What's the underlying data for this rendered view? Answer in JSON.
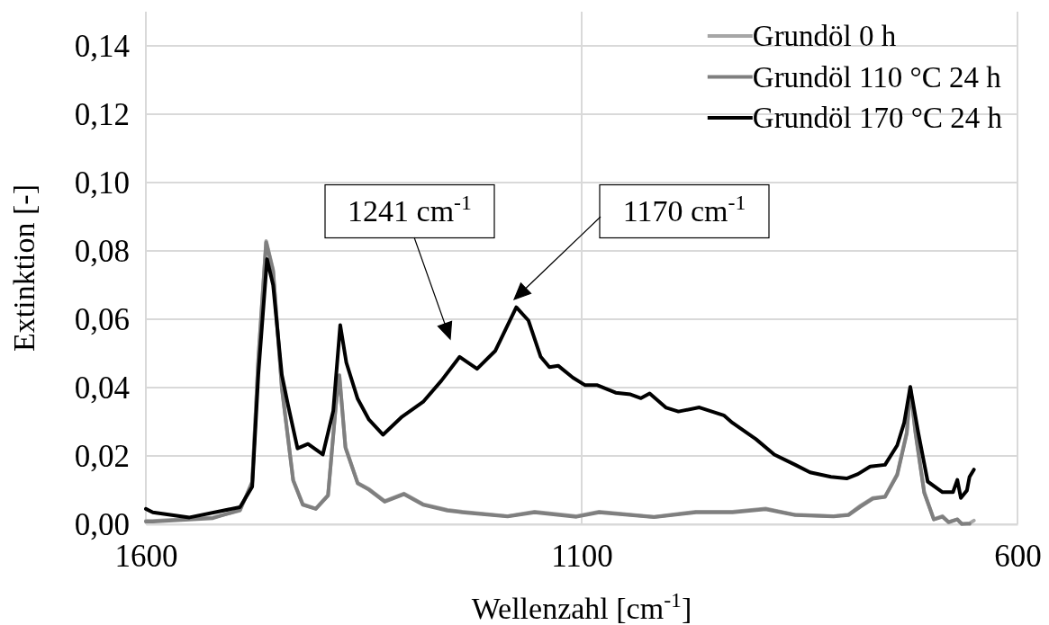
{
  "chart_data": {
    "type": "line",
    "xlabel": "Wellenzahl [cm$^{-1}$]",
    "ylabel": "Extinktion [-]",
    "xlim": [
      1600,
      600
    ],
    "xticks": [
      1600,
      1100,
      600
    ],
    "ylim": [
      0,
      0.15
    ],
    "yticks": [
      {
        "value": 0,
        "label": "0,00"
      },
      {
        "value": 0.02,
        "label": "0,02"
      },
      {
        "value": 0.04,
        "label": "0,04"
      },
      {
        "value": 0.06,
        "label": "0,06"
      },
      {
        "value": 0.08,
        "label": "0,08"
      },
      {
        "value": 0.1,
        "label": "0,10"
      },
      {
        "value": 0.12,
        "label": "0,12"
      },
      {
        "value": 0.14,
        "label": "0,14"
      }
    ],
    "grid": true,
    "legend": "top right",
    "line_style": "solid",
    "marker": "none",
    "annotations": [
      "1241 cm$^{-1}$",
      "1170 cm$^{-1}$"
    ],
    "series": [
      {
        "name": "Grundöl 0 h",
        "color": "#a6a6a6",
        "x": [
          1600,
          1592,
          1523,
          1492,
          1478,
          1471,
          1462,
          1454,
          1444,
          1431,
          1420,
          1405,
          1391,
          1382,
          1378,
          1371,
          1357,
          1344,
          1326,
          1304,
          1282,
          1254,
          1237,
          1185,
          1154,
          1106,
          1080,
          1017,
          969,
          927,
          889,
          855,
          811,
          794,
          780,
          766,
          752,
          738,
          727,
          723,
          717,
          707,
          696,
          686,
          679,
          669,
          664,
          655,
          650
        ],
        "values": [
          0.001,
          0.001,
          0.002,
          0.004,
          0.0125,
          0.0484,
          0.0829,
          0.0745,
          0.0402,
          0.013,
          0.0059,
          0.0046,
          0.0086,
          0.035,
          0.0437,
          0.0226,
          0.0121,
          0.0103,
          0.0068,
          0.009,
          0.0059,
          0.0042,
          0.0037,
          0.0024,
          0.0037,
          0.0024,
          0.0037,
          0.0022,
          0.0037,
          0.0037,
          0.0046,
          0.0028,
          0.0024,
          0.0028,
          0.0055,
          0.0077,
          0.0081,
          0.0147,
          0.027,
          0.0402,
          0.027,
          0.0094,
          0.0015,
          0.0024,
          0.0007,
          0.0015,
          0,
          0.0003,
          0.0011
        ]
      },
      {
        "name": "Grundöl 110 °C 24 h",
        "color": "#7f7f7f",
        "x": [
          1600,
          1592,
          1523,
          1492,
          1478,
          1471,
          1462,
          1454,
          1444,
          1431,
          1420,
          1405,
          1391,
          1382,
          1378,
          1371,
          1357,
          1344,
          1326,
          1304,
          1282,
          1254,
          1237,
          1185,
          1154,
          1106,
          1080,
          1017,
          969,
          927,
          889,
          855,
          811,
          794,
          780,
          766,
          752,
          738,
          727,
          723,
          717,
          707,
          696,
          686,
          679,
          669,
          664,
          655
        ],
        "values": [
          0.0008,
          0.0008,
          0.0018,
          0.0042,
          0.0122,
          0.048,
          0.0825,
          0.074,
          0.0398,
          0.0128,
          0.0057,
          0.0045,
          0.0084,
          0.0348,
          0.0435,
          0.0224,
          0.012,
          0.0101,
          0.0066,
          0.0088,
          0.0057,
          0.004,
          0.0035,
          0.0023,
          0.0035,
          0.0022,
          0.0035,
          0.0021,
          0.0035,
          0.0035,
          0.0044,
          0.0027,
          0.0023,
          0.0027,
          0.0052,
          0.0075,
          0.008,
          0.0144,
          0.0266,
          0.0398,
          0.0266,
          0.0092,
          0.0014,
          0.0022,
          0.0006,
          0.0014,
          0.0002,
          0.0001
        ]
      },
      {
        "name": "Grundöl 170 °C 24 h",
        "color": "#000000",
        "x": [
          1600,
          1592,
          1550,
          1492,
          1478,
          1471,
          1461,
          1454,
          1444,
          1437,
          1426,
          1414,
          1397,
          1385,
          1377,
          1370,
          1357,
          1344,
          1328,
          1306,
          1282,
          1261,
          1240,
          1220,
          1199,
          1175,
          1161,
          1147,
          1137,
          1127,
          1110,
          1096,
          1082,
          1061,
          1044,
          1032,
          1022,
          1003,
          989,
          965,
          937,
          927,
          900,
          879,
          855,
          838,
          814,
          796,
          783,
          769,
          752,
          738,
          730,
          723,
          714,
          703,
          686,
          674,
          669,
          665,
          658,
          655,
          650
        ],
        "values": [
          0.0045,
          0.0035,
          0.002,
          0.005,
          0.011,
          0.0437,
          0.0776,
          0.07,
          0.0437,
          0.035,
          0.0222,
          0.0235,
          0.0204,
          0.0332,
          0.0583,
          0.0473,
          0.0367,
          0.0306,
          0.0262,
          0.0315,
          0.0358,
          0.042,
          0.049,
          0.0455,
          0.0508,
          0.0635,
          0.0596,
          0.049,
          0.046,
          0.0464,
          0.0429,
          0.0407,
          0.0407,
          0.0385,
          0.038,
          0.0369,
          0.0383,
          0.0341,
          0.033,
          0.0342,
          0.0319,
          0.0297,
          0.0249,
          0.0204,
          0.0174,
          0.0152,
          0.0139,
          0.0134,
          0.0147,
          0.0169,
          0.0174,
          0.0231,
          0.0297,
          0.0402,
          0.027,
          0.0125,
          0.0094,
          0.0094,
          0.013,
          0.0077,
          0.0099,
          0.0139,
          0.016
        ]
      }
    ]
  }
}
